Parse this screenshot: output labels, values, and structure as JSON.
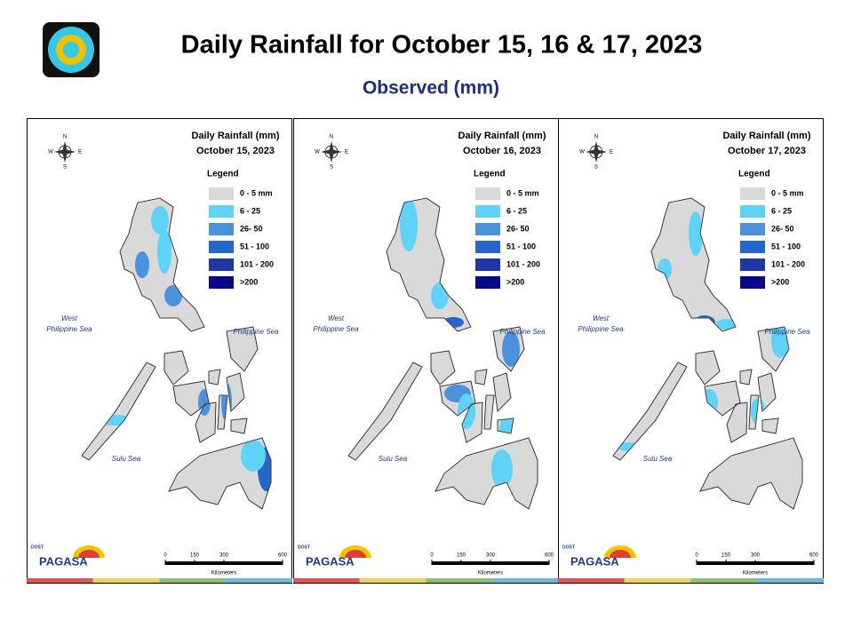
{
  "header": {
    "title": "Daily Rainfall for October 15, 16 & 17, 2023",
    "subtitle": "Observed (mm)"
  },
  "map_title": "Daily Rainfall (mm)",
  "dates": [
    "October 15, 2023",
    "October 16, 2023",
    "October 17, 2023"
  ],
  "legend": {
    "title": "Legend",
    "items": [
      {
        "label": "0 - 5 mm",
        "color": "#d9d9d9"
      },
      {
        "label": "6 - 25",
        "color": "#5fd3f7"
      },
      {
        "label": "26- 50",
        "color": "#4a93dc"
      },
      {
        "label": "51 - 100",
        "color": "#2466cc"
      },
      {
        "label": "101 - 200",
        "color": "#1d37a6"
      },
      {
        "label": ">200",
        "color": "#08088a"
      }
    ]
  },
  "seas": {
    "west": [
      "West",
      "Philippine Sea"
    ],
    "east": "Philippine Sea",
    "south": "Sulu Sea"
  },
  "compass": {
    "n": "N",
    "e": "E",
    "s": "S",
    "w": "W"
  },
  "scale": {
    "ticks": [
      0,
      150,
      300,
      600
    ],
    "unit": "Kilometers"
  },
  "logo": {
    "top": "DOST",
    "name": "PAGASA"
  }
}
